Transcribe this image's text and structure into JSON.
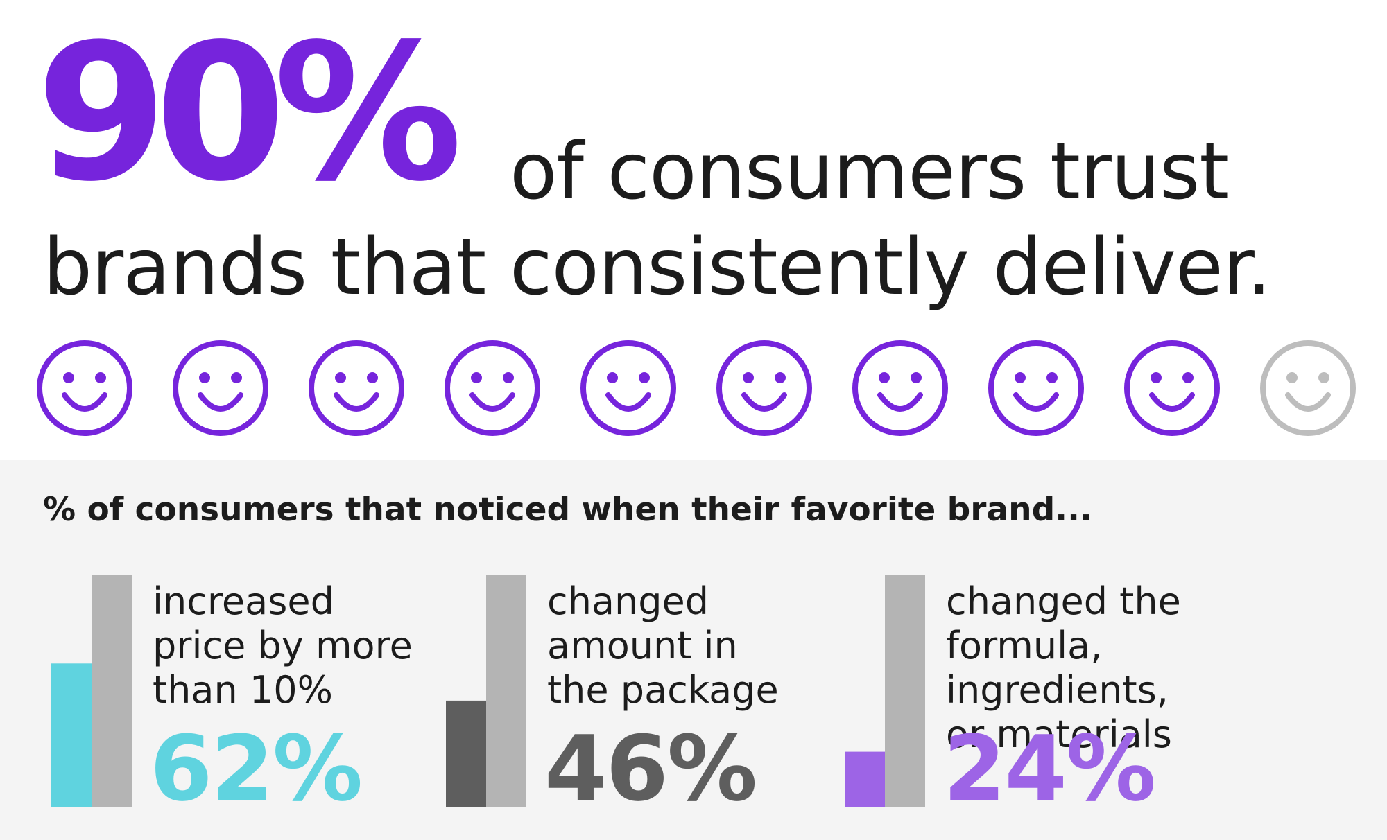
{
  "headline": {
    "percent": "90%",
    "line1": "of consumers trust",
    "line2": "brands that consistently deliver."
  },
  "colors": {
    "accent_purple": "#7624dc",
    "face_gray": "#bdbdbd",
    "bar_track": "#b4b4b4",
    "teal": "#5fd3df",
    "dark_gray": "#5e5e5e",
    "light_purple": "#9d64e6"
  },
  "faces": {
    "total": 10,
    "highlighted": 9
  },
  "chart_data": {
    "type": "bar",
    "title": "% of consumers that noticed when their favorite brand...",
    "ylim": [
      0,
      100
    ],
    "categories": [
      "increased\nprice by more\nthan 10%",
      "changed\namount in\nthe package",
      "changed the\nformula, ingredients,\nor materials"
    ],
    "values": [
      62,
      46,
      24
    ],
    "value_labels": [
      "62%",
      "46%",
      "24%"
    ],
    "colors": [
      "#5fd3df",
      "#5e5e5e",
      "#9d64e6"
    ]
  }
}
